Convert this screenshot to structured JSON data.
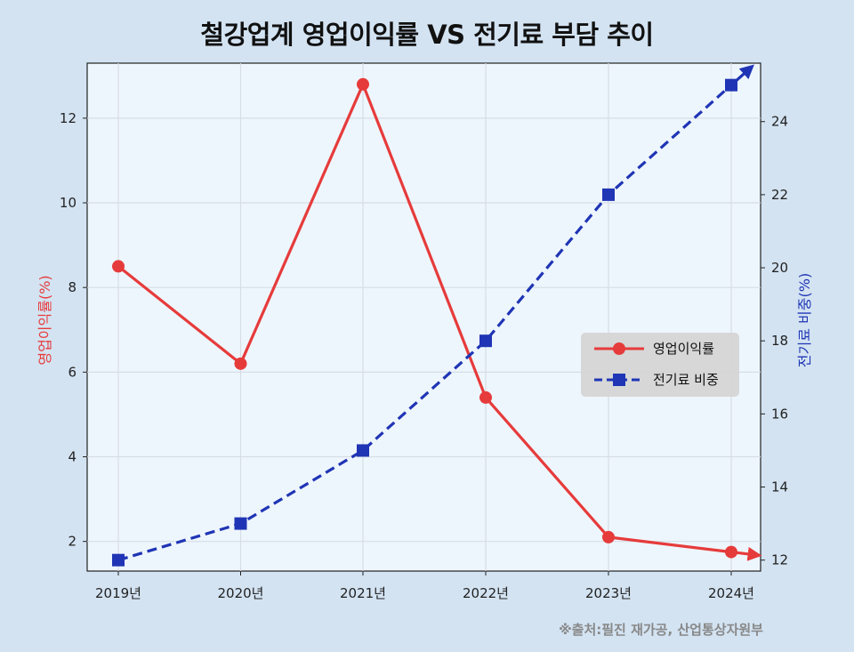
{
  "title": "철강업계 영업이익률 VS 전기료 부담 추이",
  "source": "※출처:필진 재가공, 산업통상자원부",
  "chart_data": {
    "type": "line",
    "categories": [
      "2019년",
      "2020년",
      "2021년",
      "2022년",
      "2023년",
      "2024년"
    ],
    "series": [
      {
        "name": "영업이익률",
        "axis": "left",
        "color": "#e63b3b",
        "style": "solid",
        "marker": "circle",
        "values": [
          8.5,
          6.2,
          12.8,
          5.4,
          2.1,
          1.75
        ]
      },
      {
        "name": "전기료 비중",
        "axis": "right",
        "color": "#1f35b5",
        "style": "dashed",
        "marker": "square",
        "values": [
          12.0,
          13.0,
          15.0,
          18.0,
          22.0,
          25.0
        ]
      }
    ],
    "ylabel_left": "영업이익률(%)",
    "ylabel_right": "전기료 비중(%)",
    "yticks_left": [
      "2",
      "4",
      "6",
      "8",
      "10",
      "12"
    ],
    "yticks_right": [
      "12",
      "14",
      "16",
      "18",
      "20",
      "22",
      "24"
    ],
    "ylim_left": [
      1.3,
      13.3
    ],
    "ylim_right": [
      11.7,
      25.6
    ],
    "grid": true,
    "legend": "center-right"
  }
}
